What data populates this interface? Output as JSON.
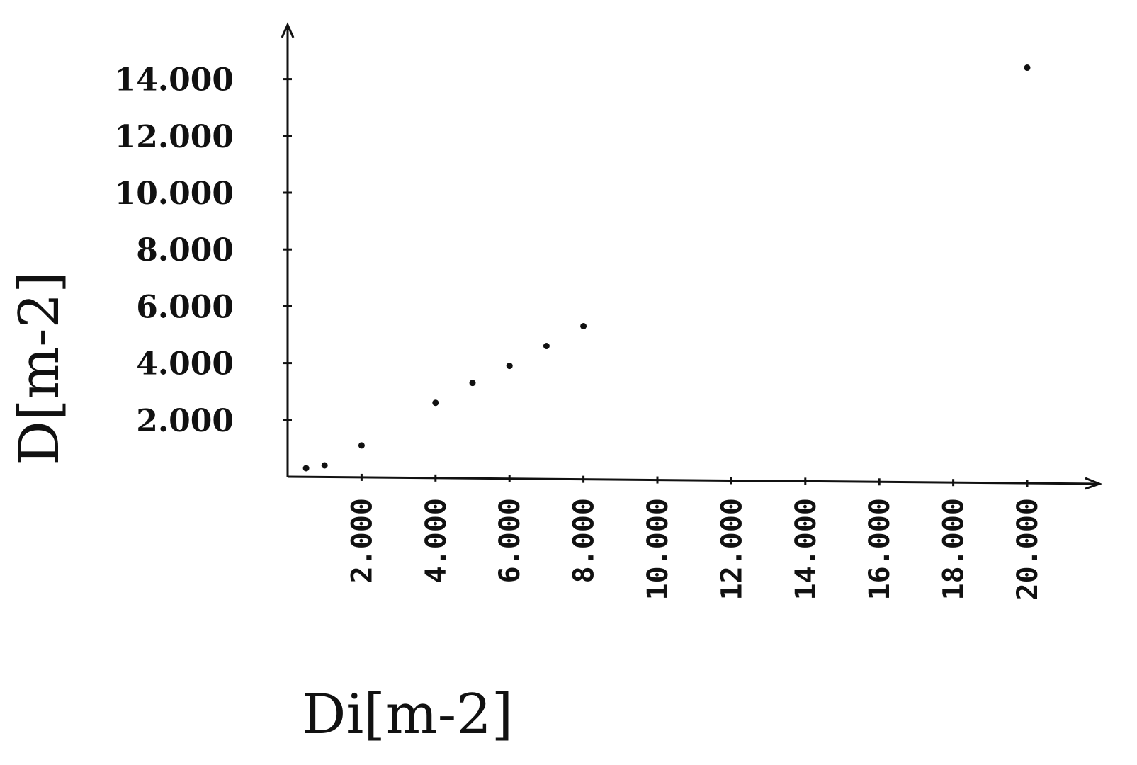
{
  "chart_data": {
    "type": "scatter",
    "title": "",
    "xlabel": "Di[m-2]",
    "ylabel": "D[m-2]",
    "xlim": [
      0,
      21.8
    ],
    "ylim": [
      0,
      14.0
    ],
    "xticks": [
      2,
      4,
      6,
      8,
      10,
      12,
      14,
      16,
      18,
      20
    ],
    "yticks": [
      2,
      4,
      6,
      8,
      10,
      12,
      14
    ],
    "xtick_labels": [
      "2.000",
      "4.000",
      "6.000",
      "8.000",
      "10.000",
      "12.000",
      "14.000",
      "16.000",
      "18.000",
      "20.000"
    ],
    "ytick_labels": [
      "2.000",
      "4.000",
      "6.000",
      "8.000",
      "10.000",
      "12.000",
      "14.000"
    ],
    "grid": false,
    "legend": "none",
    "series": [
      {
        "x": [
          0.5,
          1.0,
          2.0,
          4.0,
          5.0,
          6.0,
          7.0,
          8.0,
          20.0
        ],
        "y": [
          0.3,
          0.4,
          1.1,
          2.6,
          3.3,
          3.9,
          4.6,
          5.3,
          14.4
        ]
      }
    ],
    "colors": {
      "ink": "#111111",
      "background": "#ffffff"
    }
  }
}
